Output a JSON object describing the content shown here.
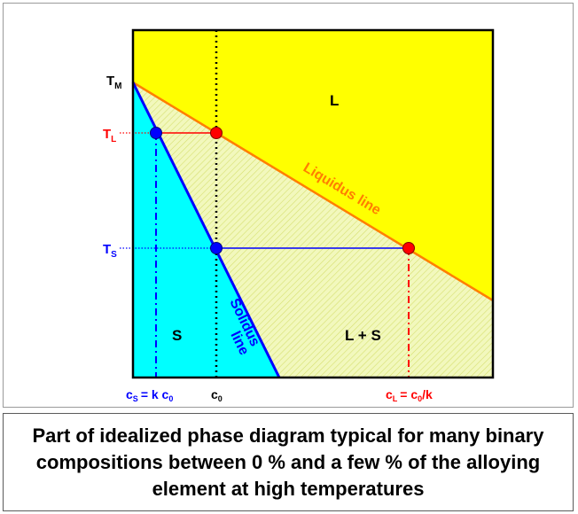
{
  "diagram": {
    "regions": {
      "liquid": "L",
      "solid": "S",
      "two_phase": "L + S"
    },
    "lines": {
      "liquidus": "Liquidus line",
      "solidus_1": "Solidus",
      "solidus_2": "line"
    },
    "temperature_labels": {
      "tm_main": "T",
      "tm_sub": "M",
      "tl_main": "T",
      "tl_sub": "L",
      "ts_main": "T",
      "ts_sub": "S"
    },
    "composition_labels": {
      "cs_main": "c",
      "cs_sub": "S",
      "cs_eq": "= k c",
      "cs_sub0": "0",
      "c0_main": "c",
      "c0_sub": "0",
      "cl_main": "c",
      "cl_sub": "L",
      "cl_eq": "= c",
      "cl_sub0": "0",
      "cl_tail": "/k"
    },
    "colors": {
      "liquid": "#ffff00",
      "solid": "#00ffff",
      "two_phase": "#f0f8b8",
      "liquidus": "#ff8000",
      "solidus": "#0000ff",
      "liquidus_marker": "#ff0000",
      "solidus_marker": "#0000ff"
    }
  },
  "caption": "Part of idealized phase diagram typical for many binary compositions between 0 % and a few % of the alloying element at high temperatures"
}
